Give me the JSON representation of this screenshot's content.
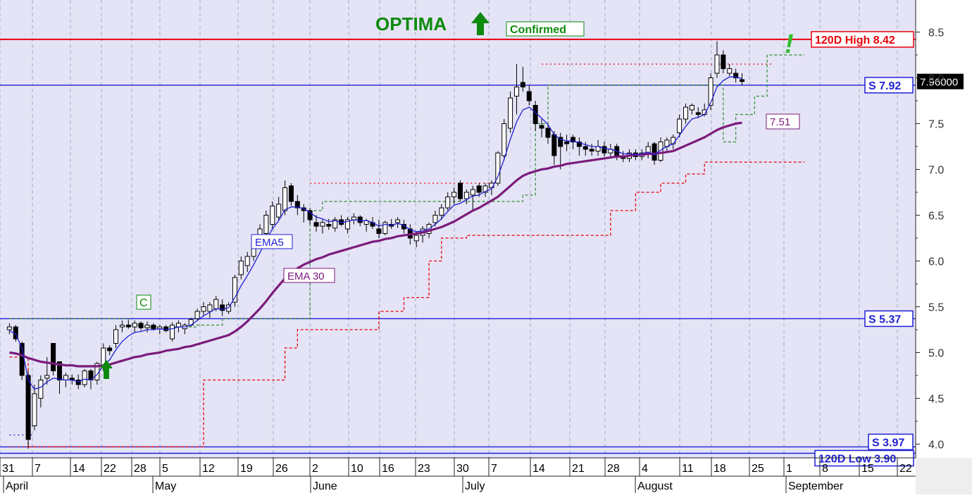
{
  "chart_data": {
    "type": "candlestick",
    "ylim": [
      3.85,
      8.85
    ],
    "y_ticks": [
      4.0,
      4.5,
      5.0,
      5.5,
      6.0,
      6.5,
      7.0,
      7.5,
      8.0,
      8.5
    ],
    "y_tick_labels": [
      "4.0",
      "4.5",
      "5.0",
      "5.5",
      "6.0",
      "6.5",
      "7.0",
      "7.5",
      "8.0",
      "8.5"
    ],
    "grid": true,
    "day_labels": [
      "31",
      "7",
      "14",
      "22",
      "28",
      "5",
      "12",
      "19",
      "26",
      "2",
      "10",
      "16",
      "23",
      "30",
      "7",
      "14",
      "21",
      "28",
      "4",
      "11",
      "18",
      "25",
      "1",
      "8",
      "15",
      "22"
    ],
    "month_labels": [
      "April",
      "May",
      "June",
      "July",
      "August",
      "September"
    ],
    "title": "OPTIMA",
    "title_arrow": "up-arrow-icon",
    "confirmed_label": "Confirmed",
    "c_marker": "C",
    "exclamation": "!",
    "last_price_label": "7.96000",
    "levels": [
      {
        "name": "high",
        "value": 8.42,
        "label": "120D High 8.42",
        "color": "#e8000b"
      },
      {
        "name": "support-1",
        "value": 7.92,
        "label": "S 7.92",
        "color": "#1f1fd6"
      },
      {
        "name": "support-2",
        "value": 5.37,
        "label": "S 5.37",
        "color": "#1f1fd6"
      },
      {
        "name": "support-3",
        "value": 3.97,
        "label": "S 3.97",
        "color": "#1f1fd6"
      },
      {
        "name": "low",
        "value": 3.9,
        "label": "120D Low 3.90",
        "color": "#1f1fd6"
      }
    ],
    "ema30_value_label": "7.51",
    "ema5_label": "EMA5",
    "ema30_label": "EMA 30",
    "candles": [
      [
        5.25,
        5.32,
        5.2,
        5.28
      ],
      [
        5.28,
        5.3,
        5.12,
        5.15
      ],
      [
        5.1,
        5.12,
        4.7,
        4.75
      ],
      [
        4.75,
        4.8,
        3.95,
        4.05
      ],
      [
        4.2,
        4.65,
        4.15,
        4.55
      ],
      [
        4.5,
        4.75,
        4.4,
        4.7
      ],
      [
        4.72,
        4.95,
        4.65,
        4.75
      ],
      [
        5.1,
        5.1,
        4.75,
        4.8
      ],
      [
        4.9,
        4.9,
        4.55,
        4.7
      ],
      [
        4.7,
        4.78,
        4.62,
        4.75
      ],
      [
        4.72,
        4.76,
        4.65,
        4.7
      ],
      [
        4.7,
        4.76,
        4.6,
        4.65
      ],
      [
        4.65,
        4.82,
        4.62,
        4.8
      ],
      [
        4.8,
        4.82,
        4.6,
        4.7
      ],
      [
        4.7,
        4.9,
        4.65,
        4.88
      ],
      [
        4.85,
        5.1,
        4.8,
        5.05
      ],
      [
        5.05,
        5.08,
        4.97,
        5.02
      ],
      [
        5.1,
        5.3,
        5.05,
        5.25
      ],
      [
        5.28,
        5.35,
        5.22,
        5.3
      ],
      [
        5.3,
        5.35,
        5.26,
        5.28
      ],
      [
        5.28,
        5.35,
        5.22,
        5.32
      ],
      [
        5.32,
        5.34,
        5.24,
        5.27
      ],
      [
        5.27,
        5.34,
        5.22,
        5.3
      ],
      [
        5.3,
        5.32,
        5.24,
        5.26
      ],
      [
        5.26,
        5.3,
        5.2,
        5.28
      ],
      [
        5.28,
        5.3,
        5.22,
        5.24
      ],
      [
        5.15,
        5.33,
        5.12,
        5.3
      ],
      [
        5.28,
        5.35,
        5.22,
        5.32
      ],
      [
        5.26,
        5.32,
        5.2,
        5.3
      ],
      [
        5.3,
        5.38,
        5.28,
        5.36
      ],
      [
        5.37,
        5.48,
        5.35,
        5.45
      ],
      [
        5.45,
        5.55,
        5.4,
        5.5
      ],
      [
        5.45,
        5.55,
        5.38,
        5.52
      ],
      [
        5.48,
        5.62,
        5.45,
        5.58
      ],
      [
        5.52,
        5.58,
        5.4,
        5.46
      ],
      [
        5.45,
        5.55,
        5.42,
        5.52
      ],
      [
        5.55,
        5.85,
        5.5,
        5.82
      ],
      [
        5.85,
        6.05,
        5.8,
        6.0
      ],
      [
        5.95,
        6.1,
        5.88,
        6.05
      ],
      [
        6.05,
        6.25,
        6.0,
        6.2
      ],
      [
        6.2,
        6.4,
        6.15,
        6.35
      ],
      [
        6.3,
        6.55,
        6.25,
        6.5
      ],
      [
        6.4,
        6.65,
        6.35,
        6.6
      ],
      [
        6.48,
        6.7,
        6.45,
        6.62
      ],
      [
        6.55,
        6.88,
        6.5,
        6.8
      ],
      [
        6.82,
        6.85,
        6.6,
        6.65
      ],
      [
        6.65,
        6.72,
        6.5,
        6.58
      ],
      [
        6.58,
        6.62,
        6.42,
        6.55
      ],
      [
        6.55,
        6.58,
        6.4,
        6.45
      ],
      [
        6.42,
        6.5,
        6.32,
        6.38
      ],
      [
        6.38,
        6.45,
        6.3,
        6.42
      ],
      [
        6.4,
        6.46,
        6.34,
        6.38
      ],
      [
        6.36,
        6.48,
        6.32,
        6.45
      ],
      [
        6.45,
        6.5,
        6.38,
        6.4
      ],
      [
        6.35,
        6.48,
        6.3,
        6.45
      ],
      [
        6.45,
        6.52,
        6.4,
        6.48
      ],
      [
        6.48,
        6.5,
        6.38,
        6.42
      ],
      [
        6.4,
        6.46,
        6.32,
        6.44
      ],
      [
        6.42,
        6.48,
        6.35,
        6.38
      ],
      [
        6.35,
        6.45,
        6.25,
        6.3
      ],
      [
        6.3,
        6.44,
        6.28,
        6.42
      ],
      [
        6.4,
        6.46,
        6.35,
        6.38
      ],
      [
        6.42,
        6.48,
        6.36,
        6.45
      ],
      [
        6.4,
        6.45,
        6.3,
        6.35
      ],
      [
        6.35,
        6.4,
        6.18,
        6.25
      ],
      [
        6.22,
        6.32,
        6.15,
        6.28
      ],
      [
        6.28,
        6.38,
        6.2,
        6.35
      ],
      [
        6.3,
        6.42,
        6.25,
        6.4
      ],
      [
        6.42,
        6.55,
        6.38,
        6.5
      ],
      [
        6.5,
        6.62,
        6.45,
        6.58
      ],
      [
        6.58,
        6.75,
        6.55,
        6.7
      ],
      [
        6.7,
        6.8,
        6.62,
        6.75
      ],
      [
        6.85,
        6.88,
        6.65,
        6.68
      ],
      [
        6.68,
        6.78,
        6.62,
        6.75
      ],
      [
        6.72,
        6.82,
        6.55,
        6.78
      ],
      [
        6.82,
        6.85,
        6.7,
        6.75
      ],
      [
        6.75,
        6.85,
        6.7,
        6.82
      ],
      [
        6.8,
        6.88,
        6.72,
        6.85
      ],
      [
        6.85,
        7.2,
        6.82,
        7.18
      ],
      [
        7.15,
        7.55,
        7.1,
        7.5
      ],
      [
        7.45,
        7.85,
        7.4,
        7.78
      ],
      [
        7.8,
        8.15,
        7.6,
        7.9
      ],
      [
        7.95,
        8.12,
        7.85,
        7.9
      ],
      [
        7.85,
        7.92,
        7.7,
        7.75
      ],
      [
        7.7,
        7.75,
        7.42,
        7.5
      ],
      [
        7.48,
        7.55,
        7.35,
        7.45
      ],
      [
        7.45,
        7.5,
        7.28,
        7.35
      ],
      [
        7.38,
        7.42,
        7.05,
        7.15
      ],
      [
        7.35,
        7.4,
        7.0,
        7.25
      ],
      [
        7.3,
        7.38,
        7.2,
        7.28
      ],
      [
        7.35,
        7.38,
        7.22,
        7.3
      ],
      [
        7.3,
        7.35,
        7.15,
        7.25
      ],
      [
        7.25,
        7.3,
        7.15,
        7.22
      ],
      [
        7.22,
        7.28,
        7.15,
        7.2
      ],
      [
        7.2,
        7.32,
        7.15,
        7.25
      ],
      [
        7.25,
        7.3,
        7.14,
        7.18
      ],
      [
        7.18,
        7.28,
        7.12,
        7.22
      ],
      [
        7.25,
        7.28,
        7.1,
        7.15
      ],
      [
        7.15,
        7.2,
        7.08,
        7.12
      ],
      [
        7.12,
        7.22,
        7.08,
        7.18
      ],
      [
        7.18,
        7.22,
        7.1,
        7.14
      ],
      [
        7.14,
        7.22,
        7.1,
        7.18
      ],
      [
        7.18,
        7.3,
        7.12,
        7.25
      ],
      [
        7.28,
        7.3,
        7.05,
        7.1
      ],
      [
        7.1,
        7.35,
        7.08,
        7.3
      ],
      [
        7.25,
        7.35,
        7.2,
        7.32
      ],
      [
        7.28,
        7.38,
        7.22,
        7.35
      ],
      [
        7.4,
        7.6,
        7.35,
        7.55
      ],
      [
        7.55,
        7.72,
        7.5,
        7.68
      ],
      [
        7.65,
        7.72,
        7.6,
        7.7
      ],
      [
        7.62,
        7.68,
        7.56,
        7.6
      ],
      [
        7.6,
        7.72,
        7.58,
        7.65
      ],
      [
        7.7,
        8.05,
        7.65,
        8.0
      ],
      [
        8.05,
        8.4,
        8.0,
        8.25
      ],
      [
        8.25,
        8.3,
        8.05,
        8.1
      ],
      [
        8.05,
        8.15,
        8.02,
        8.1
      ],
      [
        8.05,
        8.1,
        7.95,
        8.0
      ],
      [
        7.98,
        8.05,
        7.92,
        7.96
      ]
    ],
    "ema5": [
      5.24,
      5.2,
      5.05,
      4.7,
      4.6,
      4.62,
      4.68,
      4.72,
      4.71,
      4.7,
      4.7,
      4.68,
      4.71,
      4.7,
      4.76,
      4.86,
      4.92,
      5.03,
      5.12,
      5.18,
      5.22,
      5.23,
      5.25,
      5.25,
      5.26,
      5.25,
      5.26,
      5.28,
      5.28,
      5.3,
      5.35,
      5.4,
      5.44,
      5.48,
      5.47,
      5.49,
      5.6,
      5.73,
      5.84,
      5.96,
      6.09,
      6.23,
      6.35,
      6.44,
      6.56,
      6.59,
      6.59,
      6.57,
      6.53,
      6.48,
      6.46,
      6.43,
      6.44,
      6.42,
      6.43,
      6.45,
      6.44,
      6.44,
      6.42,
      6.38,
      6.4,
      6.39,
      6.41,
      6.39,
      6.34,
      6.32,
      6.33,
      6.35,
      6.4,
      6.46,
      6.54,
      6.61,
      6.63,
      6.67,
      6.71,
      6.72,
      6.76,
      6.79,
      6.92,
      7.11,
      7.33,
      7.52,
      7.65,
      7.68,
      7.62,
      7.56,
      7.49,
      7.38,
      7.33,
      7.31,
      7.31,
      7.29,
      7.27,
      7.25,
      7.25,
      7.23,
      7.22,
      7.2,
      7.17,
      7.17,
      7.16,
      7.17,
      7.19,
      7.16,
      7.21,
      7.25,
      7.28,
      7.37,
      7.47,
      7.55,
      7.57,
      7.6,
      7.73,
      7.9,
      7.97,
      8.01,
      8.01,
      7.99
    ],
    "ema30": [
      5.0,
      4.99,
      4.97,
      4.94,
      4.92,
      4.9,
      4.89,
      4.88,
      4.87,
      4.86,
      4.86,
      4.85,
      4.85,
      4.85,
      4.85,
      4.86,
      4.87,
      4.89,
      4.91,
      4.93,
      4.95,
      4.96,
      4.98,
      4.99,
      5.0,
      5.02,
      5.03,
      5.04,
      5.06,
      5.07,
      5.09,
      5.11,
      5.13,
      5.15,
      5.17,
      5.19,
      5.23,
      5.28,
      5.34,
      5.41,
      5.48,
      5.56,
      5.65,
      5.73,
      5.81,
      5.87,
      5.92,
      5.96,
      5.99,
      6.02,
      6.04,
      6.07,
      6.09,
      6.11,
      6.13,
      6.15,
      6.17,
      6.19,
      6.21,
      6.22,
      6.24,
      6.25,
      6.27,
      6.28,
      6.29,
      6.3,
      6.31,
      6.33,
      6.35,
      6.37,
      6.4,
      6.43,
      6.47,
      6.51,
      6.55,
      6.58,
      6.62,
      6.66,
      6.7,
      6.76,
      6.82,
      6.88,
      6.93,
      6.96,
      6.98,
      7.0,
      7.01,
      7.03,
      7.04,
      7.06,
      7.07,
      7.08,
      7.09,
      7.1,
      7.11,
      7.12,
      7.13,
      7.14,
      7.14,
      7.15,
      7.16,
      7.16,
      7.17,
      7.17,
      7.18,
      7.19,
      7.2,
      7.23,
      7.26,
      7.29,
      7.32,
      7.35,
      7.39,
      7.43,
      7.46,
      7.48,
      7.5,
      7.51
    ],
    "stop_red": [
      [
        0,
        4.95
      ],
      [
        3,
        3.97
      ],
      [
        29,
        3.97
      ],
      [
        31,
        4.7
      ],
      [
        42,
        4.7
      ],
      [
        44,
        5.05
      ],
      [
        46,
        5.25
      ],
      [
        57,
        5.25
      ],
      [
        59,
        5.45
      ],
      [
        63,
        5.6
      ],
      [
        67,
        6.0
      ],
      [
        69,
        6.25
      ],
      [
        73,
        6.28
      ],
      [
        92,
        6.28
      ],
      [
        96,
        6.55
      ],
      [
        100,
        6.75
      ],
      [
        104,
        6.85
      ],
      [
        108,
        6.95
      ],
      [
        111,
        7.08
      ],
      [
        127,
        7.08
      ]
    ],
    "stop_green": [
      [
        0,
        5.37
      ],
      [
        17,
        5.37
      ],
      [
        19,
        5.3
      ],
      [
        21,
        5.28
      ],
      [
        30,
        5.3
      ],
      [
        34,
        5.37
      ],
      [
        39,
        5.37
      ],
      [
        48,
        6.55
      ],
      [
        50,
        6.65
      ],
      [
        82,
        6.72
      ],
      [
        84,
        7.5
      ],
      [
        86,
        7.92
      ],
      [
        110,
        7.92
      ],
      [
        114,
        7.3
      ],
      [
        116,
        7.6
      ],
      [
        119,
        7.8
      ],
      [
        121,
        8.25
      ],
      [
        127,
        8.25
      ]
    ],
    "resistance_red_dotted": [
      [
        {
          "i": 48,
          "v": 6.85
        },
        {
          "i": 77,
          "v": 6.85
        }
      ],
      [
        {
          "i": 85,
          "v": 8.15
        },
        {
          "i": 122,
          "v": 8.15
        }
      ],
      [
        {
          "i": 0,
          "v": 3.97
        },
        {
          "i": 29,
          "v": 3.97
        }
      ]
    ],
    "blue_dotted": [
      {
        "i": 0,
        "v": 4.1
      },
      {
        "i": 4,
        "v": 4.1
      }
    ]
  }
}
